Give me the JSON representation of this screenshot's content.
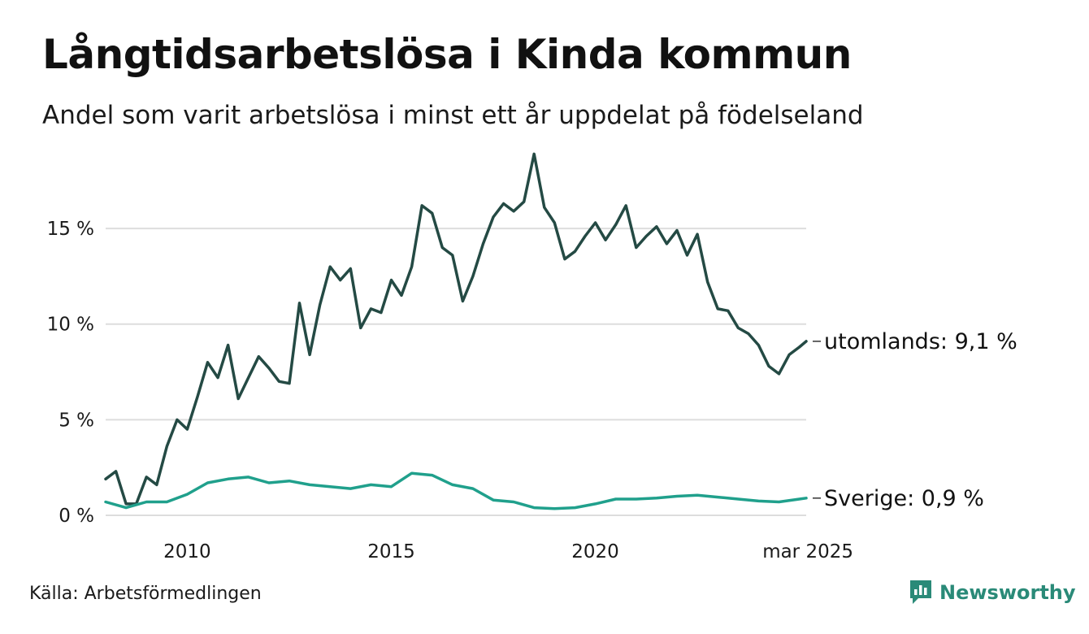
{
  "header": {
    "title": "Långtidsarbetslösa i Kinda kommun",
    "subtitle": "Andel som varit arbetslösa i minst ett år uppdelat på födelseland"
  },
  "footer": {
    "source": "Källa: Arbetsförmedlingen",
    "brand": "Newsworthy",
    "brand_icon": "newsworthy-logo-icon"
  },
  "colors": {
    "utomlands": "#244a44",
    "sverige": "#20a08c",
    "grid": "#dddddd",
    "brand": "#2a8a78"
  },
  "chart_data": {
    "type": "line",
    "x_range": [
      "2008-01",
      "2025-03"
    ],
    "ylim": [
      0,
      19
    ],
    "y_ticks": [
      {
        "value": 0,
        "label": "0 %"
      },
      {
        "value": 5,
        "label": "5 %"
      },
      {
        "value": 10,
        "label": "10 %"
      },
      {
        "value": 15,
        "label": "15 %"
      }
    ],
    "x_ticks": [
      {
        "date": "2010-01",
        "label": "2010"
      },
      {
        "date": "2015-01",
        "label": "2015"
      },
      {
        "date": "2020-01",
        "label": "2020"
      },
      {
        "date": "2025-03",
        "label": "mar 2025"
      }
    ],
    "grid": "horizontal",
    "series": [
      {
        "name": "utomlands",
        "end_label": "utomlands: 9,1 %",
        "points": [
          [
            "2008-01",
            1.9
          ],
          [
            "2008-04",
            2.3
          ],
          [
            "2008-07",
            0.6
          ],
          [
            "2008-10",
            0.6
          ],
          [
            "2009-01",
            2.0
          ],
          [
            "2009-04",
            1.6
          ],
          [
            "2009-07",
            3.6
          ],
          [
            "2009-10",
            5.0
          ],
          [
            "2010-01",
            4.5
          ],
          [
            "2010-04",
            6.2
          ],
          [
            "2010-07",
            8.0
          ],
          [
            "2010-10",
            7.2
          ],
          [
            "2011-01",
            8.9
          ],
          [
            "2011-04",
            6.1
          ],
          [
            "2011-07",
            7.2
          ],
          [
            "2011-10",
            8.3
          ],
          [
            "2012-01",
            7.7
          ],
          [
            "2012-04",
            7.0
          ],
          [
            "2012-07",
            6.9
          ],
          [
            "2012-10",
            11.1
          ],
          [
            "2013-01",
            8.4
          ],
          [
            "2013-04",
            11.0
          ],
          [
            "2013-07",
            13.0
          ],
          [
            "2013-10",
            12.3
          ],
          [
            "2014-01",
            12.9
          ],
          [
            "2014-04",
            9.8
          ],
          [
            "2014-07",
            10.8
          ],
          [
            "2014-10",
            10.6
          ],
          [
            "2015-01",
            12.3
          ],
          [
            "2015-04",
            11.5
          ],
          [
            "2015-07",
            13.0
          ],
          [
            "2015-10",
            16.2
          ],
          [
            "2016-01",
            15.8
          ],
          [
            "2016-04",
            14.0
          ],
          [
            "2016-07",
            13.6
          ],
          [
            "2016-10",
            11.2
          ],
          [
            "2017-01",
            12.5
          ],
          [
            "2017-04",
            14.2
          ],
          [
            "2017-07",
            15.6
          ],
          [
            "2017-10",
            16.3
          ],
          [
            "2018-01",
            15.9
          ],
          [
            "2018-04",
            16.4
          ],
          [
            "2018-07",
            18.9
          ],
          [
            "2018-10",
            16.1
          ],
          [
            "2019-01",
            15.3
          ],
          [
            "2019-04",
            13.4
          ],
          [
            "2019-07",
            13.8
          ],
          [
            "2019-10",
            14.6
          ],
          [
            "2020-01",
            15.3
          ],
          [
            "2020-04",
            14.4
          ],
          [
            "2020-07",
            15.2
          ],
          [
            "2020-10",
            16.2
          ],
          [
            "2021-01",
            14.0
          ],
          [
            "2021-04",
            14.6
          ],
          [
            "2021-07",
            15.1
          ],
          [
            "2021-10",
            14.2
          ],
          [
            "2022-01",
            14.9
          ],
          [
            "2022-04",
            13.6
          ],
          [
            "2022-07",
            14.7
          ],
          [
            "2022-10",
            12.2
          ],
          [
            "2023-01",
            10.8
          ],
          [
            "2023-04",
            10.7
          ],
          [
            "2023-07",
            9.8
          ],
          [
            "2023-10",
            9.5
          ],
          [
            "2024-01",
            8.9
          ],
          [
            "2024-04",
            7.8
          ],
          [
            "2024-07",
            7.4
          ],
          [
            "2024-10",
            8.4
          ],
          [
            "2025-01",
            8.8
          ],
          [
            "2025-03",
            9.1
          ]
        ]
      },
      {
        "name": "Sverige",
        "end_label": "Sverige: 0,9 %",
        "points": [
          [
            "2008-01",
            0.7
          ],
          [
            "2008-07",
            0.4
          ],
          [
            "2009-01",
            0.7
          ],
          [
            "2009-07",
            0.7
          ],
          [
            "2010-01",
            1.1
          ],
          [
            "2010-07",
            1.7
          ],
          [
            "2011-01",
            1.9
          ],
          [
            "2011-07",
            2.0
          ],
          [
            "2012-01",
            1.7
          ],
          [
            "2012-07",
            1.8
          ],
          [
            "2013-01",
            1.6
          ],
          [
            "2013-07",
            1.5
          ],
          [
            "2014-01",
            1.4
          ],
          [
            "2014-07",
            1.6
          ],
          [
            "2015-01",
            1.5
          ],
          [
            "2015-07",
            2.2
          ],
          [
            "2016-01",
            2.1
          ],
          [
            "2016-07",
            1.6
          ],
          [
            "2017-01",
            1.4
          ],
          [
            "2017-07",
            0.8
          ],
          [
            "2018-01",
            0.7
          ],
          [
            "2018-07",
            0.4
          ],
          [
            "2019-01",
            0.35
          ],
          [
            "2019-07",
            0.4
          ],
          [
            "2020-01",
            0.6
          ],
          [
            "2020-07",
            0.85
          ],
          [
            "2021-01",
            0.85
          ],
          [
            "2021-07",
            0.9
          ],
          [
            "2022-01",
            1.0
          ],
          [
            "2022-07",
            1.05
          ],
          [
            "2023-01",
            0.95
          ],
          [
            "2023-07",
            0.85
          ],
          [
            "2024-01",
            0.75
          ],
          [
            "2024-07",
            0.7
          ],
          [
            "2025-01",
            0.85
          ],
          [
            "2025-03",
            0.9
          ]
        ]
      }
    ]
  }
}
